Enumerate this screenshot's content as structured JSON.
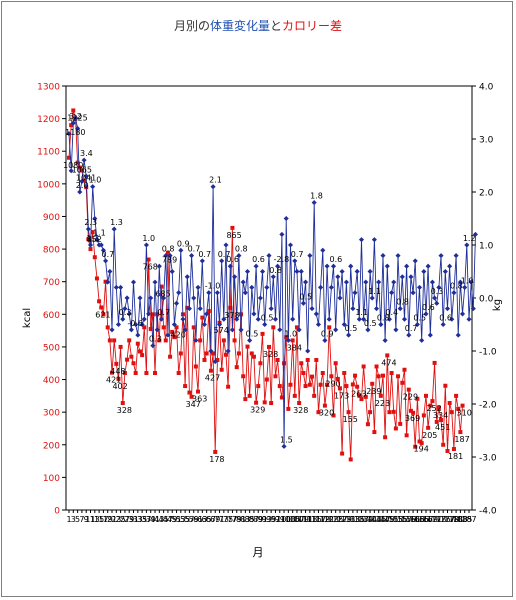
{
  "chart_data": {
    "type": "line",
    "title_parts": [
      {
        "text": "月別の",
        "color": "#333333"
      },
      {
        "text": "体重変化量",
        "color": "#1f4fb0"
      },
      {
        "text": "と",
        "color": "#333333"
      },
      {
        "text": "カロリー差",
        "color": "#e01010"
      }
    ],
    "xlabel": "月",
    "ylabel_left": "kcal",
    "ylabel_right": "kg",
    "ylim_left": [
      0,
      1300
    ],
    "yticks_left": [
      "0",
      "100",
      "200",
      "300",
      "400",
      "500",
      "600",
      "700",
      "800",
      "900",
      "1000",
      "1100",
      "1200",
      "1300"
    ],
    "ylim_right": [
      -4.0,
      4.0
    ],
    "yticks_right": [
      "-4.0",
      "-3.0",
      "-2.0",
      "-1.0",
      "0.0",
      "1.0",
      "2.0",
      "3.0",
      "4.0"
    ],
    "xlim": [
      1,
      187
    ],
    "xtick_labels": [
      "1",
      "3",
      "5",
      "7",
      "9",
      "11",
      "13",
      "15",
      "17",
      "19",
      "21",
      "23",
      "25",
      "27",
      "29",
      "31",
      "33",
      "35",
      "37",
      "39",
      "41",
      "43",
      "45",
      "47",
      "49",
      "51",
      "53",
      "55",
      "57",
      "59",
      "61",
      "63",
      "65",
      "67",
      "69",
      "71",
      "73",
      "75",
      "77",
      "79",
      "81",
      "83",
      "85",
      "87",
      "89",
      "91",
      "93",
      "95",
      "97",
      "99",
      "101",
      "103",
      "105",
      "107",
      "109",
      "111",
      "113",
      "115",
      "117",
      "119",
      "121",
      "123",
      "125",
      "127",
      "129",
      "131",
      "133",
      "135",
      "137",
      "139",
      "141",
      "143",
      "145",
      "147",
      "149",
      "151",
      "153",
      "155",
      "157",
      "159",
      "161",
      "163",
      "165",
      "167",
      "169",
      "171",
      "173",
      "175",
      "177",
      "179",
      "181",
      "183",
      "185",
      "187"
    ],
    "series": [
      {
        "axis": "right",
        "color": "#1f2f9a",
        "values": [
          3.1,
          2.4,
          3.3,
          3.4,
          3.2,
          2.0,
          2.2,
          2.6,
          2.3,
          1.3,
          1.0,
          2.1,
          1.5,
          1.1,
          1.0,
          1.0,
          0.9,
          0.7,
          0.3,
          0.5,
          -0.6,
          1.3,
          0.2,
          -0.5,
          0.2,
          -0.4,
          -0.2,
          0.0,
          -0.3,
          -0.6,
          0.3,
          -0.5,
          -0.7,
          0.0,
          -0.5,
          -0.4,
          1.0,
          -0.3,
          0.0,
          -0.9,
          0.3,
          -0.6,
          0.6,
          -0.4,
          0.0,
          0.8,
          -0.7,
          0.8,
          0.5,
          -0.5,
          -0.1,
          0.1,
          0.9,
          -0.4,
          -0.6,
          0.4,
          -0.2,
          0.8,
          0.0,
          -0.8,
          0.2,
          -0.2,
          0.7,
          -0.5,
          -0.3,
          0.1,
          -1.0,
          2.1,
          -1.2,
          0.1,
          -0.5,
          0.7,
          -0.4,
          1.0,
          -1.0,
          0.6,
          -0.6,
          0.4,
          -0.4,
          0.8,
          -0.6,
          0.3,
          0.1,
          0.5,
          -0.8,
          0.2,
          -0.3,
          0.6,
          -0.4,
          0.0,
          0.5,
          -0.5,
          0.2,
          0.8,
          -0.2,
          0.4,
          -0.4,
          0.6,
          -0.6,
          1.2,
          -2.8,
          1.5,
          -0.8,
          1.0,
          -0.4,
          0.7,
          0.5,
          -0.6,
          0.5,
          -0.1,
          0.3,
          -1.0,
          0.8,
          -0.2,
          1.8,
          -0.3,
          -0.5,
          0.2,
          0.9,
          -0.8,
          0.6,
          -0.4,
          0.2,
          0.6,
          -0.6,
          0.4,
          0.0,
          0.5,
          -0.5,
          0.3,
          -0.7,
          0.6,
          -0.2,
          0.1,
          0.5,
          -0.4,
          1.1,
          -0.4,
          0.3,
          -0.6,
          0.5,
          0.0,
          1.1,
          -0.2,
          0.3,
          -0.5,
          0.8,
          -0.8,
          0.6,
          -0.4,
          0.1,
          0.3,
          -0.6,
          0.8,
          -0.2,
          0.4,
          -0.4,
          0.6,
          -0.7,
          0.4,
          0.1,
          0.7,
          -0.5,
          0.2,
          -0.8,
          0.5,
          -0.3,
          0.6,
          -0.7,
          0.3,
          0.0,
          -0.1,
          0.2,
          0.8,
          -0.5,
          0.5,
          -0.2,
          0.6,
          -0.4,
          0.1,
          0.8,
          -0.7,
          0.3,
          -0.3,
          0.2,
          1.0,
          -0.4,
          0.3,
          -0.2,
          1.2
        ]
      },
      {
        "axis": "left",
        "color": "#e01010",
        "values": [
          1080,
          1180,
          1225,
          1200,
          1065,
          1050,
          1041,
          1010,
          990,
          830,
          800,
          852,
          775,
          710,
          640,
          621,
          600,
          700,
          560,
          520,
          421,
          520,
          448,
          402,
          500,
          328,
          420,
          461,
          520,
          470,
          450,
          420,
          510,
          486,
          475,
          560,
          420,
          768,
          555,
          600,
          420,
          600,
          520,
          685,
          560,
          520,
          789,
          470,
          546,
          530,
          560,
          420,
          480,
          600,
          380,
          620,
          360,
          347,
          560,
          440,
          363,
          520,
          590,
          460,
          480,
          610,
          427,
          480,
          178,
          460,
          574,
          430,
          520,
          476,
          378,
          620,
          865,
          520,
          438,
          480,
          600,
          410,
          340,
          501,
          350,
          480,
          470,
          329,
          380,
          450,
          540,
          330,
          400,
          500,
          328,
          560,
          410,
          460,
          380,
          345,
          450,
          530,
          310,
          384,
          520,
          350,
          560,
          328,
          450,
          420,
          380,
          460,
          384,
          409,
          350,
          460,
          300,
          384,
          420,
          320,
          384,
          560,
          410,
          290,
          450,
          402,
          373,
          173,
          420,
          380,
          300,
          155,
          385,
          412,
          378,
          350,
          340,
          440,
          347,
          263,
          300,
          387,
          239,
          440,
          410,
          350,
          412,
          223,
          474,
          300,
          420,
          301,
          250,
          410,
          264,
          390,
          430,
          229,
          369,
          304,
          298,
          194,
          341,
          210,
          205,
          290,
          350,
          252,
          320,
          334,
          451,
          270,
          313,
          276,
          200,
          381,
          181,
          328,
          300,
          187,
          350,
          310,
          239,
          320
        ]
      }
    ],
    "labels_blue": [
      {
        "i": 3,
        "t": "3.2"
      },
      {
        "i": 6,
        "t": "2.0"
      },
      {
        "i": 8,
        "t": "3.4"
      },
      {
        "i": 10,
        "t": "2.3"
      },
      {
        "i": 11,
        "t": "1.3"
      },
      {
        "i": 12,
        "t": "1.0"
      },
      {
        "i": 14,
        "t": "1.1"
      },
      {
        "i": 18,
        "t": "0.7"
      },
      {
        "i": 22,
        "t": "1.3"
      },
      {
        "i": 26,
        "t": "0.3"
      },
      {
        "i": 37,
        "t": "1.0"
      },
      {
        "i": 40,
        "t": "0.3"
      },
      {
        "i": 44,
        "t": "0.7"
      },
      {
        "i": 46,
        "t": "0.8"
      },
      {
        "i": 53,
        "t": "0.9"
      },
      {
        "i": 58,
        "t": "0.7"
      },
      {
        "i": 63,
        "t": "0.7"
      },
      {
        "i": 68,
        "t": "2.1"
      },
      {
        "i": 72,
        "t": "0.7"
      },
      {
        "i": 76,
        "t": "0.6"
      },
      {
        "i": 80,
        "t": "0.8"
      },
      {
        "i": 85,
        "t": "0.5"
      },
      {
        "i": 88,
        "t": "0.6"
      },
      {
        "i": 92,
        "t": "0.5"
      },
      {
        "i": 96,
        "t": "0.8"
      },
      {
        "i": 101,
        "t": "1.5"
      },
      {
        "i": 103,
        "t": "1.0"
      },
      {
        "i": 106,
        "t": "0.7"
      },
      {
        "i": 110,
        "t": "0.5"
      },
      {
        "i": 115,
        "t": "1.8"
      },
      {
        "i": 120,
        "t": "0.9"
      },
      {
        "i": 124,
        "t": "0.6"
      },
      {
        "i": 131,
        "t": "0.5"
      },
      {
        "i": 136,
        "t": "1.1"
      },
      {
        "i": 140,
        "t": "0.5"
      },
      {
        "i": 142,
        "t": "1.1"
      },
      {
        "i": 146,
        "t": "0.8"
      },
      {
        "i": 150,
        "t": "0.4"
      },
      {
        "i": 155,
        "t": "0.8"
      },
      {
        "i": 159,
        "t": "0.7"
      },
      {
        "i": 163,
        "t": "0.5"
      },
      {
        "i": 167,
        "t": "0.6"
      },
      {
        "i": 171,
        "t": "0.3"
      },
      {
        "i": 175,
        "t": "0.6"
      },
      {
        "i": 180,
        "t": "0.8"
      },
      {
        "i": 185,
        "t": "1.0"
      },
      {
        "i": 186,
        "t": "1.2"
      },
      {
        "i": 98,
        "t": "-2.8"
      },
      {
        "i": 66,
        "t": "-1.0"
      },
      {
        "i": 30,
        "t": "-0.6"
      }
    ],
    "labels_red": [
      {
        "i": 1,
        "t": "1080"
      },
      {
        "i": 2,
        "t": "1180"
      },
      {
        "i": 3,
        "t": "1225"
      },
      {
        "i": 7,
        "t": "1041"
      },
      {
        "i": 5,
        "t": "1065"
      },
      {
        "i": 12,
        "t": "852"
      },
      {
        "i": 16,
        "t": "621"
      },
      {
        "i": 21,
        "t": "421"
      },
      {
        "i": 23,
        "t": "448"
      },
      {
        "i": 24,
        "t": "402"
      },
      {
        "i": 26,
        "t": "328"
      },
      {
        "i": 38,
        "t": "768"
      },
      {
        "i": 44,
        "t": "685"
      },
      {
        "i": 47,
        "t": "789"
      },
      {
        "i": 51,
        "t": "420"
      },
      {
        "i": 58,
        "t": "347"
      },
      {
        "i": 61,
        "t": "363"
      },
      {
        "i": 67,
        "t": "427"
      },
      {
        "i": 69,
        "t": "178"
      },
      {
        "i": 71,
        "t": "574"
      },
      {
        "i": 76,
        "t": "378"
      },
      {
        "i": 77,
        "t": "865"
      },
      {
        "i": 88,
        "t": "329"
      },
      {
        "i": 94,
        "t": "328"
      },
      {
        "i": 105,
        "t": "384"
      },
      {
        "i": 108,
        "t": "328"
      },
      {
        "i": 120,
        "t": "320"
      },
      {
        "i": 123,
        "t": "290"
      },
      {
        "i": 127,
        "t": "173"
      },
      {
        "i": 131,
        "t": "155"
      },
      {
        "i": 135,
        "t": "263"
      },
      {
        "i": 142,
        "t": "239"
      },
      {
        "i": 146,
        "t": "223"
      },
      {
        "i": 149,
        "t": "474"
      },
      {
        "i": 159,
        "t": "229"
      },
      {
        "i": 160,
        "t": "369"
      },
      {
        "i": 164,
        "t": "194"
      },
      {
        "i": 168,
        "t": "205"
      },
      {
        "i": 170,
        "t": "252"
      },
      {
        "i": 173,
        "t": "334"
      },
      {
        "i": 174,
        "t": "451"
      },
      {
        "i": 180,
        "t": "181"
      },
      {
        "i": 183,
        "t": "187"
      },
      {
        "i": 187,
        "t": "239"
      },
      {
        "i": 184,
        "t": "310"
      }
    ]
  }
}
